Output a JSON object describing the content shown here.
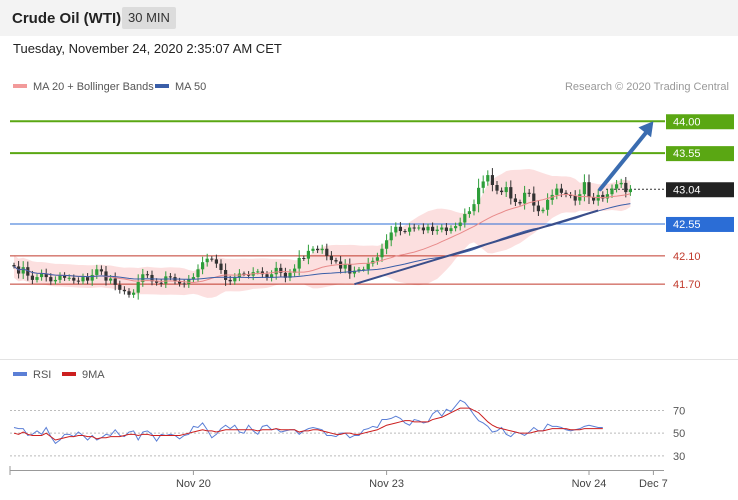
{
  "header": {
    "title": "Crude Oil (WTI)",
    "interval": "30 MIN"
  },
  "timestamp": "Tuesday, November 24, 2020 2:35:07 AM CET",
  "chart_data": [
    {
      "type": "candlestick",
      "legend": [
        {
          "label": "MA 20 + Bollinger Bands",
          "color": "#f29a9a"
        },
        {
          "label": "MA 50",
          "color": "#3a5ea8"
        }
      ],
      "credit": "Research © 2020 Trading Central",
      "ylim": [
        40.7,
        44.3
      ],
      "x_ticks": [
        {
          "label": "Nov 20",
          "index": 39
        },
        {
          "label": "Nov 23",
          "index": 81
        },
        {
          "label": "Nov 24",
          "index": 125
        },
        {
          "label": "Dec 7",
          "index": 139
        }
      ],
      "levels": [
        {
          "value": 44.0,
          "label": "44.00",
          "color": "#5aa713",
          "label_style": "box"
        },
        {
          "value": 43.55,
          "label": "43.55",
          "color": "#5aa713",
          "label_style": "box"
        },
        {
          "value": 43.04,
          "label": "43.04",
          "color": "#222222",
          "label_style": "box"
        },
        {
          "value": 42.55,
          "label": "42.55",
          "color": "#2b6dd6",
          "label_style": "box"
        },
        {
          "value": 42.1,
          "label": "42.10",
          "color": "#c0392b",
          "label_style": "text"
        },
        {
          "value": 41.7,
          "label": "41.70",
          "color": "#c0392b",
          "label_style": "text"
        }
      ],
      "trend_arrow": {
        "from": [
          127,
          43.04
        ],
        "to": [
          139,
          44.0
        ]
      },
      "trendline": {
        "from": [
          74,
          41.7
        ],
        "to": [
          127,
          42.74
        ]
      },
      "close": [
        41.95,
        41.85,
        41.94,
        41.82,
        41.76,
        41.8,
        41.85,
        41.8,
        41.74,
        41.76,
        41.82,
        41.79,
        41.79,
        41.75,
        41.74,
        41.8,
        41.75,
        41.83,
        41.91,
        41.88,
        41.75,
        41.78,
        41.69,
        41.62,
        41.6,
        41.55,
        41.58,
        41.73,
        41.84,
        41.83,
        41.74,
        41.72,
        41.71,
        41.81,
        41.8,
        41.74,
        41.71,
        41.7,
        41.77,
        41.8,
        41.91,
        42.01,
        42.06,
        42.05,
        41.99,
        41.9,
        41.76,
        41.74,
        41.8,
        41.85,
        41.84,
        41.82,
        41.87,
        41.88,
        41.84,
        41.79,
        41.84,
        41.93,
        41.86,
        41.79,
        41.86,
        41.92,
        42.07,
        42.06,
        42.17,
        42.2,
        42.18,
        42.2,
        42.1,
        42.04,
        42.02,
        41.92,
        41.98,
        41.85,
        41.89,
        41.91,
        41.91,
        41.99,
        42.03,
        42.08,
        42.2,
        42.32,
        42.43,
        42.51,
        42.45,
        42.44,
        42.5,
        42.49,
        42.5,
        42.46,
        42.51,
        42.45,
        42.47,
        42.5,
        42.45,
        42.49,
        42.52,
        42.57,
        42.69,
        42.73,
        42.83,
        43.06,
        43.15,
        43.24,
        43.1,
        43.02,
        43.0,
        43.07,
        42.91,
        42.86,
        42.84,
        42.99,
        42.98,
        42.81,
        42.73,
        42.75,
        42.89,
        42.96,
        43.05,
        42.99,
        42.96,
        42.95,
        42.88,
        42.97,
        43.14,
        42.93,
        42.88,
        42.96,
        42.91,
        42.97,
        43.05,
        43.11,
        43.13,
        43.0,
        43.04
      ]
    },
    {
      "type": "line",
      "legend": [
        {
          "label": "RSI",
          "color": "#5b7fd6"
        },
        {
          "label": "9MA",
          "color": "#cc1f1f"
        }
      ],
      "ylim": [
        22,
        88
      ],
      "y_ticks": [
        {
          "label": "70",
          "value": 70
        },
        {
          "label": "50",
          "value": 50
        },
        {
          "label": "30",
          "value": 30
        }
      ],
      "series": [
        {
          "name": "RSI",
          "values": [
            55,
            54,
            54,
            48,
            49,
            52,
            49,
            55,
            47,
            41,
            44,
            49,
            49,
            47,
            51,
            48,
            44,
            48,
            44,
            46,
            49,
            48,
            53,
            48,
            47,
            51,
            52,
            44,
            51,
            52,
            49,
            43,
            49,
            48,
            49,
            48,
            45,
            48,
            49,
            56,
            55,
            59,
            53,
            46,
            49,
            54,
            57,
            54,
            57,
            51,
            50,
            57,
            52,
            49,
            56,
            57,
            53,
            54,
            51,
            52,
            53,
            53,
            49,
            52,
            54,
            55,
            54,
            53,
            48,
            48,
            47,
            50,
            50,
            46,
            48,
            48,
            53,
            54,
            56,
            55,
            62,
            62,
            63,
            65,
            63,
            59,
            57,
            62,
            61,
            59,
            60,
            67,
            70,
            65,
            71,
            69,
            74,
            79,
            77,
            72,
            66,
            61,
            59,
            56,
            51,
            52,
            55,
            49,
            47,
            51,
            50,
            48,
            51,
            55,
            52,
            52,
            58,
            56,
            56,
            55,
            53,
            52,
            53,
            54,
            56,
            57,
            56,
            55,
            55
          ]
        },
        {
          "name": "9MA",
          "values": [
            50,
            49,
            51,
            49,
            48,
            48,
            48,
            50,
            47,
            44,
            45,
            46,
            47,
            47,
            48,
            48,
            47,
            47,
            45,
            46,
            46,
            47,
            47,
            47,
            48,
            49,
            49,
            48,
            49,
            49,
            48,
            48,
            48,
            48,
            48,
            48,
            48,
            49,
            50,
            51,
            52,
            53,
            52,
            52,
            51,
            52,
            53,
            53,
            53,
            53,
            53,
            53,
            53,
            52,
            53,
            53,
            53,
            54,
            53,
            53,
            53,
            53,
            51,
            52,
            52,
            53,
            53,
            52,
            51,
            50,
            49,
            49,
            50,
            50,
            49,
            49,
            50,
            51,
            52,
            53,
            55,
            57,
            58,
            59,
            60,
            61,
            61,
            60,
            60,
            60,
            60,
            62,
            63,
            64,
            66,
            68,
            70,
            72,
            72,
            72,
            70,
            68,
            64,
            60,
            57,
            55,
            54,
            53,
            52,
            51,
            50,
            50,
            50,
            51,
            52,
            52,
            53,
            54,
            54,
            54,
            54,
            53,
            53,
            53,
            54,
            54,
            54,
            54,
            54
          ]
        }
      ]
    }
  ]
}
